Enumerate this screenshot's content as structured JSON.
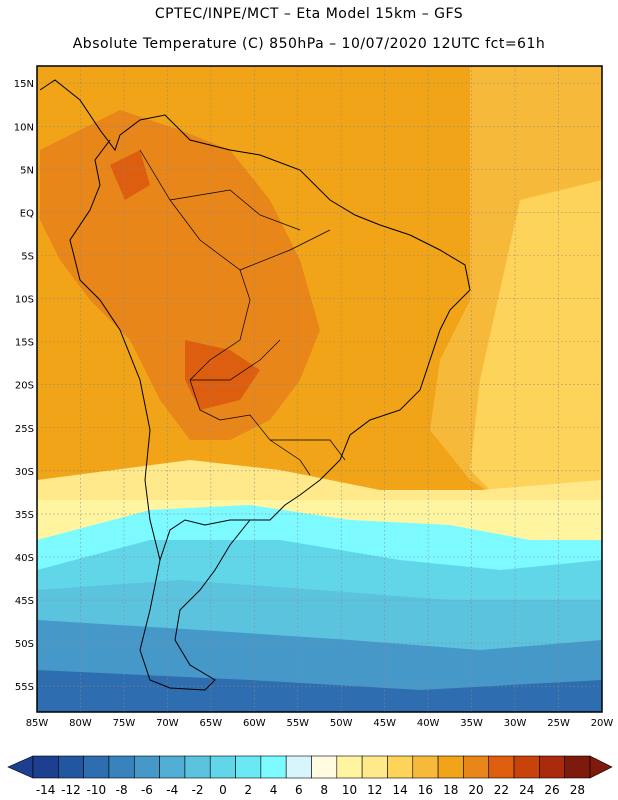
{
  "header": {
    "line1": "CPTEC/INPE/MCT –  Eta Model 15km – GFS",
    "line2": "Absolute Temperature (C) 850hPa – 10/07/2020 12UTC fct=61h"
  },
  "map": {
    "region": "South America",
    "lon_range": [
      -85,
      -20
    ],
    "lat_range": [
      -58,
      17
    ],
    "lat_ticks": [
      "15N",
      "10N",
      "5N",
      "EQ",
      "5S",
      "10S",
      "15S",
      "20S",
      "25S",
      "30S",
      "35S",
      "40S",
      "45S",
      "50S",
      "55S"
    ],
    "lon_ticks": [
      "85W",
      "80W",
      "75W",
      "70W",
      "65W",
      "60W",
      "55W",
      "50W",
      "45W",
      "40W",
      "35W",
      "30W",
      "25W",
      "20W"
    ],
    "gridlines": "dotted"
  },
  "colorbar": {
    "labels": [
      "-14",
      "-12",
      "-10",
      "-8",
      "-6",
      "-4",
      "-2",
      "0",
      "2",
      "4",
      "6",
      "8",
      "10",
      "12",
      "14",
      "16",
      "18",
      "20",
      "22",
      "24",
      "26",
      "28"
    ],
    "colors": [
      "#1c3f8f",
      "#2356a0",
      "#2e6db0",
      "#3882bd",
      "#4598c8",
      "#52add4",
      "#5cc3df",
      "#62d6e9",
      "#6ae8f3",
      "#7cfaff",
      "#d6f6fb",
      "#fffae0",
      "#fff5a0",
      "#ffe98a",
      "#fdd35a",
      "#f7b93a",
      "#f1a417",
      "#e8861a",
      "#dd5e0e",
      "#c8420c",
      "#a92a0c",
      "#7e1a0c"
    ]
  }
}
